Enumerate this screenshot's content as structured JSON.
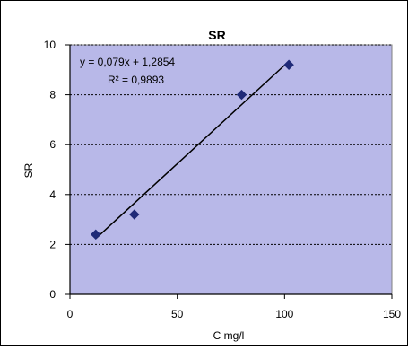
{
  "chart_data": {
    "type": "scatter",
    "title": "SR",
    "xlabel": "C mg/l",
    "ylabel": "SR",
    "xlim": [
      0,
      150
    ],
    "ylim": [
      0,
      10
    ],
    "x_ticks": [
      "0",
      "50",
      "100",
      "150"
    ],
    "y_ticks": [
      "0",
      "2",
      "4",
      "6",
      "8",
      "10"
    ],
    "grid": "horizontal dotted",
    "series": [
      {
        "x": [
          12,
          30,
          80,
          102
        ],
        "y": [
          2.4,
          3.2,
          8.0,
          9.2
        ]
      }
    ],
    "trendline": {
      "slope": 0.079,
      "intercept": 1.2854,
      "x_range": [
        12,
        102
      ]
    },
    "annotations": {
      "equation": "y = 0,079x + 1,2854",
      "r_squared": "R² = 0,9893"
    },
    "colors": {
      "plot_background": "#b8b8e8",
      "marker": "#1f2a78",
      "trendline": "#000000",
      "gridline": "#000000"
    }
  }
}
